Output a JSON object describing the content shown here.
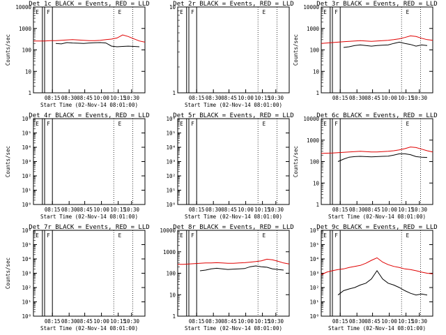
{
  "figure": {
    "colors": {
      "events": "#000000",
      "lld": "#e00000",
      "axes": "#000000",
      "background": "#ffffff"
    },
    "x_tick_labels": [
      "08:15",
      "08:30",
      "08:45",
      "10:00",
      "10:15",
      "10:30"
    ]
  },
  "chart_data": [
    {
      "type": "line",
      "title": "Det 1c BLACK = Events, RED = LLD",
      "ylabel": "Counts/sec",
      "xlabel": "Start Time (02-Nov-14 08:01:00)",
      "yscale": "log",
      "ylim": [
        1,
        10000
      ],
      "y_tick_labels": [
        "1",
        "10",
        "100",
        "1000",
        "10000"
      ],
      "x": [
        0,
        0.05,
        0.1,
        0.15,
        0.2,
        0.25,
        0.3,
        0.35,
        0.4,
        0.45,
        0.5,
        0.55,
        0.6,
        0.65,
        0.7,
        0.75,
        0.8,
        0.85,
        0.9,
        0.95,
        1.0
      ],
      "series": [
        {
          "name": "Events",
          "color": "#000000",
          "values": [
            null,
            null,
            null,
            null,
            200,
            190,
            220,
            210,
            205,
            200,
            210,
            215,
            220,
            210,
            150,
            140,
            145,
            150,
            145,
            140,
            null
          ]
        },
        {
          "name": "LLD",
          "color": "#e00000",
          "values": [
            260,
            260,
            260,
            270,
            270,
            280,
            290,
            300,
            290,
            280,
            270,
            270,
            280,
            300,
            320,
            360,
            500,
            420,
            330,
            260,
            230
          ]
        }
      ],
      "markers": [
        "E",
        "F",
        "E"
      ]
    },
    {
      "type": "line",
      "title": "Det 2r BLACK = Events, RED = LLD",
      "ylabel": "",
      "xlabel": "Start Time (02-Nov-14 08:01:00)",
      "yscale": "log",
      "ylim": [
        1,
        10
      ],
      "y_tick_labels": [
        "1",
        "10"
      ],
      "series": [],
      "markers": [
        "E",
        "F",
        "E"
      ]
    },
    {
      "type": "line",
      "title": "Det 3r BLACK = Events, RED = LLD",
      "ylabel": "Counts/sec",
      "xlabel": "",
      "yscale": "log",
      "ylim": [
        1,
        10000
      ],
      "y_tick_labels": [
        "1",
        "10",
        "100",
        "1000",
        "10000"
      ],
      "x": [
        0,
        0.05,
        0.1,
        0.15,
        0.2,
        0.25,
        0.3,
        0.35,
        0.4,
        0.45,
        0.5,
        0.55,
        0.6,
        0.65,
        0.7,
        0.75,
        0.8,
        0.85,
        0.9,
        0.95,
        1.0
      ],
      "series": [
        {
          "name": "Events",
          "color": "#000000",
          "values": [
            null,
            null,
            null,
            null,
            130,
            140,
            160,
            170,
            160,
            150,
            160,
            165,
            170,
            200,
            230,
            200,
            180,
            150,
            170,
            160,
            null
          ]
        },
        {
          "name": "LLD",
          "color": "#e00000",
          "values": [
            200,
            210,
            220,
            230,
            240,
            250,
            260,
            270,
            260,
            250,
            260,
            270,
            280,
            300,
            330,
            380,
            450,
            420,
            350,
            300,
            280
          ]
        }
      ],
      "markers": [
        "E",
        "F",
        "E"
      ]
    },
    {
      "type": "line",
      "title": "Det 4r BLACK = Events, RED = LLD",
      "ylabel": "Counts/sec",
      "xlabel": "Start Time (02-Nov-14 08:01:00)",
      "yscale": "log",
      "ylim": [
        1,
        1000000
      ],
      "y_tick_labels": [
        "10⁰",
        "10¹",
        "10²",
        "10³",
        "10⁴",
        "10⁵",
        "10⁶"
      ],
      "series": [],
      "markers": [
        "E",
        "F",
        "E"
      ]
    },
    {
      "type": "line",
      "title": "Det 5r BLACK = Events, RED = LLD",
      "ylabel": "",
      "xlabel": "Start Time (02-Nov-14 08:01:00)",
      "yscale": "log",
      "ylim": [
        1,
        1000000
      ],
      "y_tick_labels": [
        "10⁰",
        "10¹",
        "10²",
        "10³",
        "10⁴",
        "10⁵",
        "10⁶"
      ],
      "series": [],
      "markers": [
        "E",
        "F",
        "E"
      ]
    },
    {
      "type": "line",
      "title": "Det 6c BLACK = Events, RED = LLD",
      "ylabel": "Counts/sec",
      "xlabel": "Start Time (02-Nov-14 08:01:00)",
      "yscale": "log",
      "ylim": [
        1,
        10000
      ],
      "y_tick_labels": [
        "1",
        "10",
        "100",
        "1000",
        "10000"
      ],
      "x": [
        0,
        0.05,
        0.1,
        0.15,
        0.2,
        0.25,
        0.3,
        0.35,
        0.4,
        0.45,
        0.5,
        0.55,
        0.6,
        0.65,
        0.7,
        0.75,
        0.8,
        0.85,
        0.9,
        0.95,
        1.0
      ],
      "series": [
        {
          "name": "Events",
          "color": "#000000",
          "values": [
            null,
            null,
            null,
            100,
            130,
            160,
            170,
            175,
            170,
            165,
            170,
            175,
            180,
            200,
            230,
            230,
            210,
            170,
            160,
            155,
            null
          ]
        },
        {
          "name": "LLD",
          "color": "#e00000",
          "values": [
            240,
            245,
            250,
            260,
            270,
            280,
            290,
            300,
            290,
            280,
            280,
            290,
            300,
            320,
            350,
            400,
            480,
            450,
            380,
            320,
            280
          ]
        }
      ],
      "markers": [
        "E",
        "F",
        "E"
      ]
    },
    {
      "type": "line",
      "title": "Det 7r BLACK = Events, RED = LLD",
      "ylabel": "Counts/sec",
      "xlabel": "Start Time (02-Nov-14 08:01:00)",
      "yscale": "log",
      "ylim": [
        1,
        1000000
      ],
      "y_tick_labels": [
        "10⁰",
        "10¹",
        "10²",
        "10³",
        "10⁴",
        "10⁵",
        "10⁶"
      ],
      "series": [],
      "markers": [
        "E",
        "F",
        "E"
      ]
    },
    {
      "type": "line",
      "title": "Det 8r BLACK = Events, RED = LLD",
      "ylabel": "",
      "xlabel": "Start Time (02-Nov-14 08:01:00)",
      "yscale": "log",
      "ylim": [
        1,
        10000
      ],
      "y_tick_labels": [
        "1",
        "10",
        "100",
        "1000",
        "10000"
      ],
      "x": [
        0,
        0.05,
        0.1,
        0.15,
        0.2,
        0.25,
        0.3,
        0.35,
        0.4,
        0.45,
        0.5,
        0.55,
        0.6,
        0.65,
        0.7,
        0.75,
        0.8,
        0.85,
        0.9,
        0.95,
        1.0
      ],
      "series": [
        {
          "name": "Events",
          "color": "#000000",
          "values": [
            null,
            null,
            null,
            null,
            130,
            140,
            160,
            170,
            160,
            150,
            155,
            160,
            165,
            200,
            220,
            200,
            190,
            160,
            150,
            140,
            null
          ]
        },
        {
          "name": "LLD",
          "color": "#e00000",
          "values": [
            260,
            260,
            270,
            280,
            290,
            300,
            300,
            310,
            300,
            290,
            290,
            300,
            310,
            330,
            350,
            380,
            450,
            420,
            360,
            300,
            270
          ]
        }
      ],
      "markers": [
        "E",
        "F",
        "E"
      ]
    },
    {
      "type": "line",
      "title": "Det 9c BLACK = Events, RED = LLD",
      "ylabel": "",
      "xlabel": "Start Time (02-Nov-14 08:01:00)",
      "yscale": "log",
      "ylim": [
        1,
        1000000
      ],
      "y_tick_labels": [
        "10⁰",
        "10¹",
        "10²",
        "10³",
        "10⁴",
        "10⁵",
        "10⁶"
      ],
      "x": [
        0,
        0.05,
        0.1,
        0.15,
        0.2,
        0.25,
        0.3,
        0.35,
        0.4,
        0.45,
        0.5,
        0.55,
        0.6,
        0.65,
        0.7,
        0.75,
        0.8,
        0.85,
        0.9,
        0.95,
        1.0
      ],
      "series": [
        {
          "name": "Events",
          "color": "#000000",
          "values": [
            null,
            null,
            null,
            30,
            60,
            80,
            100,
            150,
            200,
            400,
            1500,
            400,
            200,
            150,
            100,
            60,
            40,
            30,
            35,
            30,
            null
          ]
        },
        {
          "name": "LLD",
          "color": "#e00000",
          "values": [
            800,
            1200,
            1500,
            1800,
            2000,
            2500,
            3000,
            3500,
            5000,
            8000,
            12000,
            6000,
            4000,
            3000,
            2500,
            2000,
            1800,
            1500,
            1200,
            1000,
            900
          ]
        }
      ],
      "markers": [
        "E",
        "F",
        "E"
      ]
    }
  ]
}
